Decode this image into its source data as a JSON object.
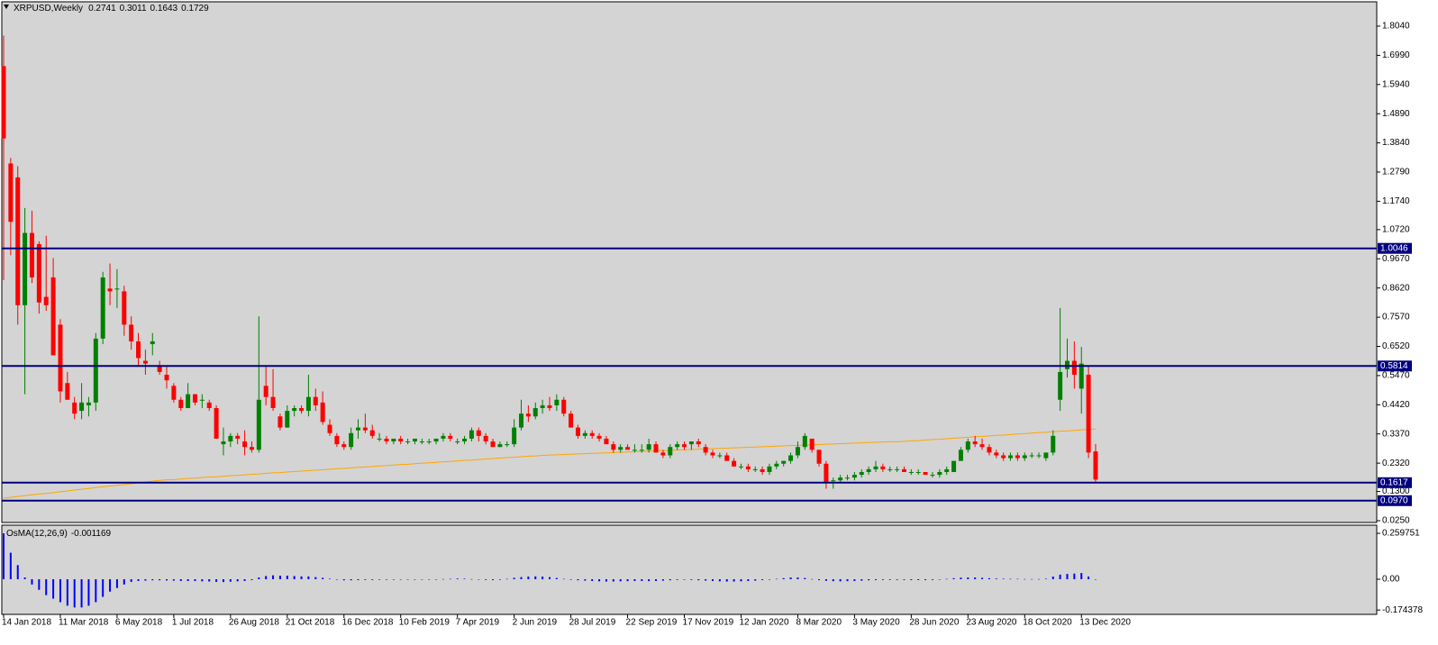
{
  "chart_data": {
    "type": "candlestick",
    "title": "XRPUSD,Weekly",
    "categories": [
      "14 Jan 2018",
      null,
      null,
      null,
      null,
      null,
      null,
      null,
      "11 Mar 2018",
      null,
      null,
      null,
      null,
      null,
      null,
      null,
      "6 May 2018",
      null,
      null,
      null,
      null,
      null,
      null,
      null,
      "1 Jul 2018",
      null,
      null,
      null,
      null,
      null,
      null,
      null,
      "26 Aug 2018",
      null,
      null,
      null,
      null,
      null,
      null,
      null,
      "21 Oct 2018",
      null,
      null,
      null,
      null,
      null,
      null,
      null,
      "16 Dec 2018",
      null,
      null,
      null,
      null,
      null,
      null,
      null,
      "10 Feb 2019",
      null,
      null,
      null,
      null,
      null,
      null,
      null,
      "7 Apr 2019",
      null,
      null,
      null,
      null,
      null,
      null,
      null,
      "2 Jun 2019",
      null,
      null,
      null,
      null,
      null,
      null,
      null,
      "28 Jul 2019",
      null,
      null,
      null,
      null,
      null,
      null,
      null,
      "22 Sep 2019",
      null,
      null,
      null,
      null,
      null,
      null,
      null,
      "17 Nov 2019",
      null,
      null,
      null,
      null,
      null,
      null,
      null,
      "12 Jan 2020",
      null,
      null,
      null,
      null,
      null,
      null,
      null,
      "8 Mar 2020",
      null,
      null,
      null,
      null,
      null,
      null,
      null,
      "3 May 2020",
      null,
      null,
      null,
      null,
      null,
      null,
      null,
      "28 Jun 2020",
      null,
      null,
      null,
      null,
      null,
      null,
      null,
      "23 Aug 2020",
      null,
      null,
      null,
      null,
      null,
      null,
      null,
      "18 Oct 2020",
      null,
      null,
      null,
      null,
      null,
      null,
      null,
      "13 Dec 2020",
      null,
      null
    ],
    "open": [
      1.66,
      1.31,
      1.26,
      0.8,
      1.06,
      1.02,
      0.83,
      0.9,
      0.73,
      0.52,
      0.45,
      0.42,
      0.44,
      0.45,
      0.68,
      0.86,
      0.86,
      0.85,
      0.73,
      0.67,
      0.6,
      0.66,
      0.58,
      0.55,
      0.51,
      0.46,
      0.43,
      0.48,
      0.46,
      0.45,
      0.43,
      0.3,
      0.31,
      0.33,
      0.31,
      0.29,
      0.28,
      0.51,
      0.47,
      0.4,
      0.36,
      0.42,
      0.43,
      0.42,
      0.47,
      0.45,
      0.37,
      0.33,
      0.3,
      0.29,
      0.35,
      0.36,
      0.35,
      0.32,
      0.32,
      0.31,
      0.32,
      0.31,
      0.31,
      0.31,
      0.31,
      0.31,
      0.32,
      0.33,
      0.31,
      0.31,
      0.32,
      0.35,
      0.33,
      0.31,
      0.29,
      0.3,
      0.3,
      0.36,
      0.41,
      0.4,
      0.43,
      0.44,
      0.44,
      0.46,
      0.41,
      0.36,
      0.33,
      0.34,
      0.33,
      0.32,
      0.3,
      0.28,
      0.29,
      0.28,
      0.28,
      0.28,
      0.3,
      0.27,
      0.26,
      0.29,
      0.3,
      0.3,
      0.31,
      0.29,
      0.27,
      0.26,
      0.26,
      0.24,
      0.22,
      0.22,
      0.21,
      0.21,
      0.2,
      0.22,
      0.23,
      0.24,
      0.26,
      0.29,
      0.32,
      0.28,
      0.23,
      0.17,
      0.17,
      0.18,
      0.18,
      0.19,
      0.2,
      0.21,
      0.22,
      0.21,
      0.21,
      0.21,
      0.2,
      0.2,
      0.2,
      0.19,
      0.19,
      0.2,
      0.2,
      0.24,
      0.28,
      0.31,
      0.3,
      0.29,
      0.27,
      0.26,
      0.25,
      0.26,
      0.25,
      0.26,
      0.26,
      0.25,
      0.27,
      0.46,
      0.57,
      0.6,
      0.5,
      0.55,
      0.2741
    ],
    "high": [
      1.77,
      1.33,
      1.3,
      1.15,
      1.14,
      1.03,
      1.05,
      0.97,
      0.75,
      0.56,
      0.47,
      0.52,
      0.47,
      0.7,
      0.92,
      0.95,
      0.93,
      0.87,
      0.76,
      0.7,
      0.64,
      0.7,
      0.6,
      0.58,
      0.52,
      0.47,
      0.52,
      0.48,
      0.48,
      0.46,
      0.44,
      0.36,
      0.34,
      0.34,
      0.35,
      0.31,
      0.76,
      0.58,
      0.57,
      0.41,
      0.44,
      0.44,
      0.44,
      0.55,
      0.5,
      0.49,
      0.39,
      0.34,
      0.31,
      0.36,
      0.39,
      0.41,
      0.37,
      0.34,
      0.33,
      0.32,
      0.33,
      0.32,
      0.32,
      0.32,
      0.32,
      0.32,
      0.34,
      0.34,
      0.32,
      0.33,
      0.36,
      0.36,
      0.34,
      0.32,
      0.31,
      0.31,
      0.39,
      0.46,
      0.44,
      0.45,
      0.46,
      0.47,
      0.48,
      0.47,
      0.42,
      0.37,
      0.35,
      0.35,
      0.34,
      0.33,
      0.31,
      0.3,
      0.3,
      0.3,
      0.3,
      0.32,
      0.31,
      0.28,
      0.3,
      0.31,
      0.31,
      0.31,
      0.32,
      0.3,
      0.28,
      0.27,
      0.27,
      0.25,
      0.23,
      0.23,
      0.22,
      0.22,
      0.23,
      0.24,
      0.24,
      0.27,
      0.31,
      0.34,
      0.32,
      0.28,
      0.24,
      0.18,
      0.19,
      0.19,
      0.2,
      0.21,
      0.22,
      0.24,
      0.23,
      0.22,
      0.22,
      0.22,
      0.21,
      0.21,
      0.2,
      0.2,
      0.21,
      0.22,
      0.24,
      0.29,
      0.32,
      0.33,
      0.32,
      0.3,
      0.28,
      0.27,
      0.27,
      0.27,
      0.27,
      0.27,
      0.27,
      0.27,
      0.35,
      0.79,
      0.68,
      0.67,
      0.65,
      0.58,
      0.3011
    ],
    "low": [
      0.89,
      0.98,
      0.73,
      0.48,
      0.88,
      0.77,
      0.78,
      0.62,
      0.45,
      0.46,
      0.39,
      0.39,
      0.4,
      0.42,
      0.66,
      0.8,
      0.79,
      0.69,
      0.64,
      0.58,
      0.55,
      0.62,
      0.55,
      0.5,
      0.45,
      0.42,
      0.43,
      0.44,
      0.43,
      0.42,
      0.32,
      0.26,
      0.29,
      0.3,
      0.26,
      0.27,
      0.27,
      0.44,
      0.42,
      0.35,
      0.36,
      0.4,
      0.41,
      0.4,
      0.42,
      0.37,
      0.33,
      0.29,
      0.28,
      0.28,
      0.32,
      0.34,
      0.32,
      0.31,
      0.3,
      0.3,
      0.3,
      0.3,
      0.3,
      0.3,
      0.3,
      0.3,
      0.31,
      0.31,
      0.3,
      0.3,
      0.31,
      0.31,
      0.3,
      0.29,
      0.29,
      0.29,
      0.29,
      0.35,
      0.38,
      0.39,
      0.41,
      0.42,
      0.42,
      0.4,
      0.36,
      0.32,
      0.32,
      0.32,
      0.31,
      0.3,
      0.27,
      0.27,
      0.28,
      0.27,
      0.27,
      0.27,
      0.27,
      0.25,
      0.25,
      0.28,
      0.28,
      0.28,
      0.29,
      0.26,
      0.25,
      0.25,
      0.24,
      0.22,
      0.21,
      0.2,
      0.2,
      0.19,
      0.19,
      0.21,
      0.22,
      0.23,
      0.25,
      0.28,
      0.27,
      0.22,
      0.14,
      0.14,
      0.16,
      0.17,
      0.17,
      0.18,
      0.19,
      0.2,
      0.2,
      0.2,
      0.2,
      0.2,
      0.19,
      0.19,
      0.19,
      0.18,
      0.18,
      0.19,
      0.2,
      0.24,
      0.27,
      0.29,
      0.28,
      0.26,
      0.25,
      0.24,
      0.24,
      0.24,
      0.24,
      0.25,
      0.25,
      0.24,
      0.26,
      0.42,
      0.54,
      0.5,
      0.41,
      0.25,
      0.1643
    ],
    "close": [
      1.4,
      1.1,
      0.8,
      1.06,
      0.9,
      0.81,
      0.8,
      0.62,
      0.49,
      0.46,
      0.41,
      0.45,
      0.45,
      0.68,
      0.9,
      0.85,
      0.86,
      0.73,
      0.67,
      0.61,
      0.59,
      0.67,
      0.56,
      0.53,
      0.46,
      0.43,
      0.48,
      0.45,
      0.46,
      0.43,
      0.32,
      0.31,
      0.33,
      0.32,
      0.29,
      0.28,
      0.46,
      0.47,
      0.43,
      0.36,
      0.42,
      0.43,
      0.42,
      0.47,
      0.44,
      0.38,
      0.34,
      0.3,
      0.29,
      0.34,
      0.36,
      0.35,
      0.33,
      0.32,
      0.31,
      0.32,
      0.31,
      0.31,
      0.32,
      0.31,
      0.31,
      0.32,
      0.33,
      0.32,
      0.31,
      0.32,
      0.35,
      0.33,
      0.31,
      0.29,
      0.3,
      0.3,
      0.36,
      0.41,
      0.4,
      0.43,
      0.44,
      0.43,
      0.46,
      0.41,
      0.36,
      0.33,
      0.34,
      0.33,
      0.32,
      0.3,
      0.28,
      0.29,
      0.28,
      0.28,
      0.28,
      0.3,
      0.27,
      0.26,
      0.29,
      0.3,
      0.29,
      0.31,
      0.3,
      0.27,
      0.26,
      0.26,
      0.24,
      0.22,
      0.22,
      0.21,
      0.21,
      0.2,
      0.22,
      0.23,
      0.24,
      0.26,
      0.29,
      0.33,
      0.28,
      0.23,
      0.16,
      0.17,
      0.18,
      0.18,
      0.19,
      0.2,
      0.21,
      0.22,
      0.21,
      0.21,
      0.21,
      0.2,
      0.2,
      0.2,
      0.19,
      0.19,
      0.2,
      0.21,
      0.24,
      0.28,
      0.31,
      0.3,
      0.29,
      0.27,
      0.26,
      0.25,
      0.26,
      0.25,
      0.26,
      0.26,
      0.26,
      0.27,
      0.33,
      0.56,
      0.6,
      0.55,
      0.59,
      0.27,
      0.1729
    ],
    "up_color": "#008000",
    "down_color": "#ff0000",
    "ylim": [
      0.0185,
      1.8526
    ],
    "yticks": [
      {
        "value": 1.804,
        "label": "1.8040"
      },
      {
        "value": 1.699,
        "label": "1.6990"
      },
      {
        "value": 1.594,
        "label": "1.5940"
      },
      {
        "value": 1.489,
        "label": "1.4890"
      },
      {
        "value": 1.384,
        "label": "1.3840"
      },
      {
        "value": 1.279,
        "label": "1.2790"
      },
      {
        "value": 1.174,
        "label": "1.1740"
      },
      {
        "value": 1.072,
        "label": "1.0720"
      },
      {
        "value": 0.967,
        "label": "0.9670"
      },
      {
        "value": 0.862,
        "label": "0.8620"
      },
      {
        "value": 0.757,
        "label": "0.7570"
      },
      {
        "value": 0.652,
        "label": "0.6520"
      },
      {
        "value": 0.547,
        "label": "0.5470"
      },
      {
        "value": 0.442,
        "label": "0.4420"
      },
      {
        "value": 0.337,
        "label": "0.3370"
      },
      {
        "value": 0.232,
        "label": "0.2320"
      },
      {
        "value": 0.13,
        "label": "0.1300"
      },
      {
        "value": 0.025,
        "label": "0.0250"
      }
    ],
    "levels": [
      1.0046,
      0.5814,
      0.1617,
      {
        "value": 0.097,
        "label": "0.0970"
      }
    ],
    "level_color": "#000080",
    "ma": {
      "color": "#ffa500",
      "values": [
        0.106,
        0.109,
        0.112,
        0.115,
        0.118,
        0.121,
        0.123,
        0.126,
        0.129,
        0.132,
        0.135,
        0.138,
        0.141,
        0.144,
        0.147,
        0.15,
        0.152,
        0.155,
        0.158,
        0.161,
        0.164,
        0.167,
        0.17,
        0.172,
        0.173,
        0.175,
        0.177,
        0.178,
        0.18,
        0.182,
        0.183,
        0.185,
        0.187,
        0.188,
        0.19,
        0.192,
        0.193,
        0.195,
        0.197,
        0.198,
        0.2,
        0.202,
        0.203,
        0.205,
        0.207,
        0.208,
        0.21,
        0.212,
        0.213,
        0.215,
        0.217,
        0.218,
        0.22,
        0.222,
        0.223,
        0.225,
        0.227,
        0.228,
        0.23,
        0.232,
        0.233,
        0.235,
        0.237,
        0.238,
        0.24,
        0.242,
        0.243,
        0.245,
        0.247,
        0.248,
        0.25,
        0.252,
        0.253,
        0.255,
        0.257,
        0.258,
        0.26,
        0.261,
        0.262,
        0.263,
        0.264,
        0.265,
        0.266,
        0.267,
        0.268,
        0.269,
        0.27,
        0.271,
        0.272,
        0.273,
        0.274,
        0.275,
        0.276,
        0.277,
        0.278,
        0.279,
        0.28,
        0.281,
        0.282,
        0.283,
        0.284,
        0.285,
        0.286,
        0.287,
        0.288,
        0.289,
        0.29,
        0.291,
        0.292,
        0.293,
        0.294,
        0.295,
        0.296,
        0.297,
        0.298,
        0.299,
        0.3,
        0.301,
        0.302,
        0.303,
        0.304,
        0.305,
        0.306,
        0.307,
        0.308,
        0.309,
        0.309,
        0.31,
        0.312,
        0.313,
        0.315,
        0.317,
        0.318,
        0.32,
        0.322,
        0.323,
        0.325,
        0.327,
        0.328,
        0.33,
        0.332,
        0.333,
        0.335,
        0.337,
        0.338,
        0.34,
        0.342,
        0.343,
        0.345,
        0.347,
        0.348,
        0.35,
        0.352,
        0.353,
        0.355
      ]
    },
    "osma": {
      "name": "OsMA(12,26,9)",
      "color": "#0000ff",
      "values": [
        0.26,
        0.15,
        0.08,
        0.01,
        -0.03,
        -0.06,
        -0.09,
        -0.11,
        -0.13,
        -0.15,
        -0.16,
        -0.16,
        -0.15,
        -0.13,
        -0.1,
        -0.07,
        -0.05,
        -0.03,
        -0.015,
        -0.01,
        -0.008,
        -0.006,
        -0.006,
        -0.007,
        -0.008,
        -0.01,
        -0.01,
        -0.01,
        -0.012,
        -0.013,
        -0.015,
        -0.016,
        -0.014,
        -0.012,
        -0.01,
        -0.005,
        0.01,
        0.018,
        0.022,
        0.02,
        0.02,
        0.018,
        0.016,
        0.016,
        0.012,
        0.008,
        0.003,
        -0.002,
        -0.006,
        -0.006,
        -0.005,
        -0.004,
        -0.004,
        -0.003,
        -0.003,
        -0.003,
        -0.002,
        -0.002,
        -0.002,
        -0.001,
        -0.001,
        0,
        0.001,
        0.002,
        0.004,
        0.003,
        0.001,
        -0.002,
        -0.004,
        -0.005,
        -0.003,
        0.002,
        0.008,
        0.012,
        0.015,
        0.016,
        0.015,
        0.012,
        0.007,
        0.002,
        -0.003,
        -0.006,
        -0.008,
        -0.01,
        -0.012,
        -0.013,
        -0.013,
        -0.012,
        -0.011,
        -0.01,
        -0.01,
        -0.011,
        -0.01,
        -0.008,
        -0.006,
        -0.004,
        -0.003,
        -0.004,
        -0.006,
        -0.008,
        -0.01,
        -0.012,
        -0.013,
        -0.013,
        -0.012,
        -0.01,
        -0.008,
        -0.005,
        -0.002,
        0.002,
        0.006,
        0.01,
        0.01,
        0.007,
        0.001,
        -0.005,
        -0.009,
        -0.011,
        -0.012,
        -0.011,
        -0.01,
        -0.008,
        -0.006,
        -0.005,
        -0.004,
        -0.004,
        -0.004,
        -0.004,
        -0.005,
        -0.005,
        -0.005,
        -0.004,
        -0.002,
        0.002,
        0.006,
        0.009,
        0.01,
        0.01,
        0.008,
        0.006,
        0.004,
        0.003,
        0.002,
        0.002,
        0.001,
        0.001,
        0.001,
        0.003,
        0.015,
        0.026,
        0.03,
        0.032,
        0.035,
        0.015,
        -0.001169
      ],
      "ylim": [
        -0.199,
        0.306
      ],
      "yticks": [
        0.259751,
        {
          "value": 0,
          "label": "0.00"
        },
        -0.174378
      ]
    }
  }
}
